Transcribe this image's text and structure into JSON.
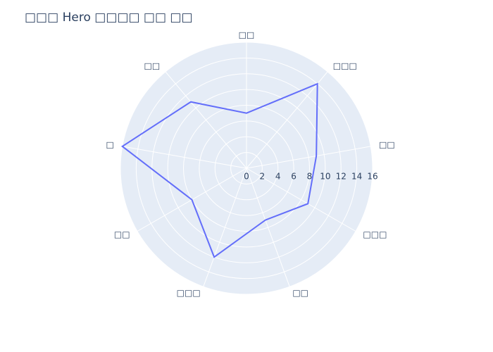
{
  "chart_data": {
    "type": "radar",
    "title": "□□□ Hero □□□□ □□ □□",
    "categories": [
      "□□",
      "□□□",
      "□□",
      "□□□",
      "□□",
      "□□□",
      "□□",
      "□",
      "□□"
    ],
    "series": [
      {
        "color": "#636efa",
        "values": [
          7,
          14,
          9,
          9,
          7,
          12,
          8,
          16,
          11
        ]
      }
    ],
    "rlim": [
      0,
      16
    ],
    "rticks": [
      0,
      2,
      4,
      6,
      8,
      10,
      12,
      14,
      16
    ],
    "grid": true
  }
}
